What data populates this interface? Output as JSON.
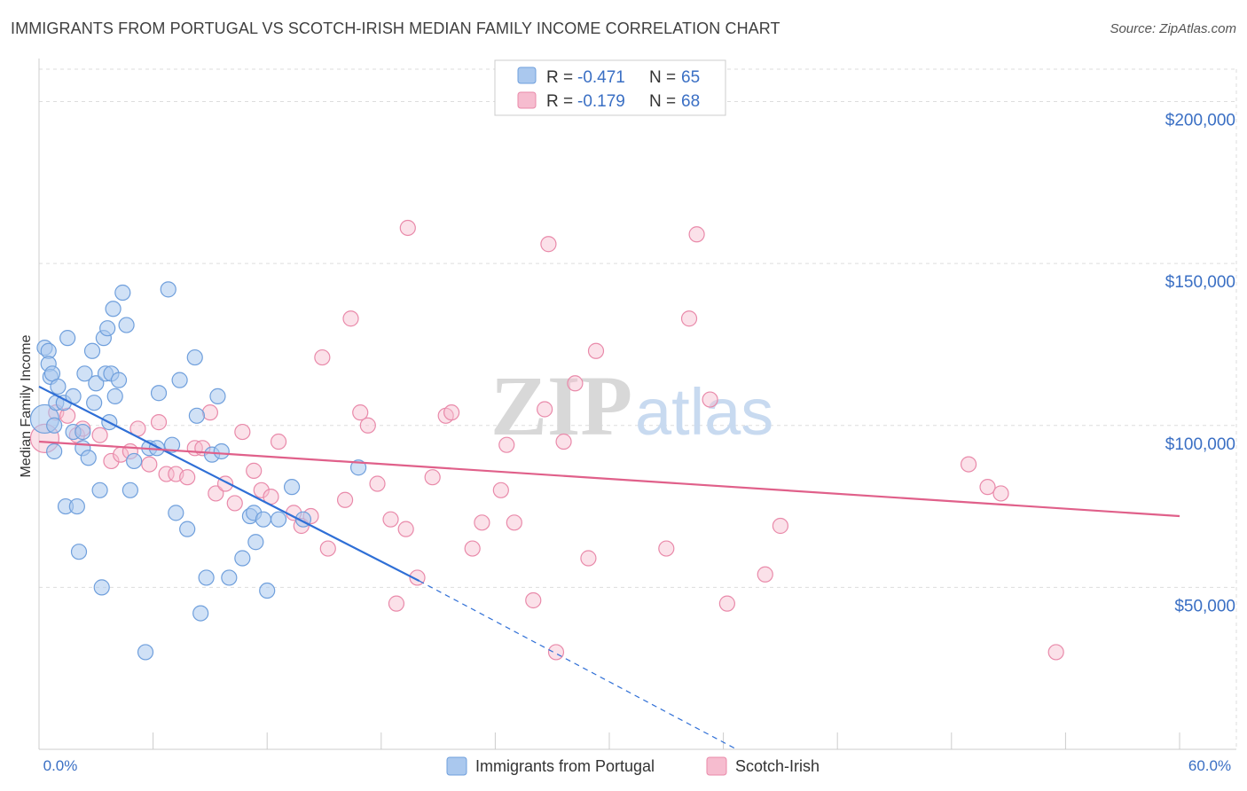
{
  "title": "IMMIGRANTS FROM PORTUGAL VS SCOTCH-IRISH MEDIAN FAMILY INCOME CORRELATION CHART",
  "source": "Source: ZipAtlas.com",
  "watermark": {
    "zip": "ZIP",
    "atlas": "atlas"
  },
  "colors": {
    "blue_fill": "#aac8ee",
    "blue_stroke": "#6f9fdc",
    "blue_line": "#2f6fd6",
    "pink_fill": "#f6bccf",
    "pink_stroke": "#e98aaa",
    "pink_line": "#e0608a",
    "axis_text": "#3a6fc4",
    "grid": "#dddddd"
  },
  "legend": {
    "rows": [
      {
        "r_label": "R =",
        "r_value": "-0.471",
        "n_label": "N =",
        "n_value": "65"
      },
      {
        "r_label": "R =",
        "r_value": "-0.179",
        "n_label": "N =",
        "n_value": "68"
      }
    ]
  },
  "chart_data": {
    "type": "scatter",
    "title": "IMMIGRANTS FROM PORTUGAL VS SCOTCH-IRISH MEDIAN FAMILY INCOME CORRELATION CHART",
    "xlabel": "",
    "ylabel": "Median Family Income",
    "xlim": [
      0,
      60
    ],
    "ylim": [
      0,
      210000
    ],
    "x_tick_labels": [
      {
        "value": 0,
        "label": "0.0%"
      },
      {
        "value": 60,
        "label": "60.0%"
      }
    ],
    "y_ticks": [
      {
        "value": 50000,
        "label": "$50,000"
      },
      {
        "value": 100000,
        "label": "$100,000"
      },
      {
        "value": 150000,
        "label": "$150,000"
      },
      {
        "value": 200000,
        "label": "$200,000"
      }
    ],
    "grid": true,
    "series": [
      {
        "name": "Immigrants from Portugal",
        "color": "#aac8ee",
        "trend": {
          "x0": 0,
          "y0": 112000,
          "x1": 20,
          "y1": 52000,
          "dash_to_x": 36.7,
          "dash_to_y": 0
        },
        "points": [
          {
            "x": 0.3,
            "y": 102000,
            "big": true
          },
          {
            "x": 0.3,
            "y": 124000
          },
          {
            "x": 0.5,
            "y": 123000
          },
          {
            "x": 0.5,
            "y": 119000
          },
          {
            "x": 0.6,
            "y": 115000
          },
          {
            "x": 0.7,
            "y": 116000
          },
          {
            "x": 0.8,
            "y": 100000
          },
          {
            "x": 0.8,
            "y": 92000
          },
          {
            "x": 0.9,
            "y": 107000
          },
          {
            "x": 1.0,
            "y": 112000
          },
          {
            "x": 1.3,
            "y": 107000
          },
          {
            "x": 1.4,
            "y": 75000
          },
          {
            "x": 1.5,
            "y": 127000
          },
          {
            "x": 1.8,
            "y": 98000
          },
          {
            "x": 1.8,
            "y": 109000
          },
          {
            "x": 2.0,
            "y": 75000
          },
          {
            "x": 2.1,
            "y": 61000
          },
          {
            "x": 2.3,
            "y": 93000
          },
          {
            "x": 2.3,
            "y": 98000
          },
          {
            "x": 2.4,
            "y": 116000
          },
          {
            "x": 2.6,
            "y": 90000
          },
          {
            "x": 2.8,
            "y": 123000
          },
          {
            "x": 2.9,
            "y": 107000
          },
          {
            "x": 3.0,
            "y": 113000
          },
          {
            "x": 3.2,
            "y": 80000
          },
          {
            "x": 3.3,
            "y": 50000
          },
          {
            "x": 3.4,
            "y": 127000
          },
          {
            "x": 3.5,
            "y": 116000
          },
          {
            "x": 3.6,
            "y": 130000
          },
          {
            "x": 3.7,
            "y": 101000
          },
          {
            "x": 3.8,
            "y": 116000
          },
          {
            "x": 3.9,
            "y": 136000
          },
          {
            "x": 4.0,
            "y": 109000
          },
          {
            "x": 4.2,
            "y": 114000
          },
          {
            "x": 4.4,
            "y": 141000
          },
          {
            "x": 4.6,
            "y": 131000
          },
          {
            "x": 4.8,
            "y": 80000
          },
          {
            "x": 5.0,
            "y": 89000
          },
          {
            "x": 5.6,
            "y": 30000
          },
          {
            "x": 5.8,
            "y": 93000
          },
          {
            "x": 6.2,
            "y": 93000
          },
          {
            "x": 6.3,
            "y": 110000
          },
          {
            "x": 6.8,
            "y": 142000
          },
          {
            "x": 7.0,
            "y": 94000
          },
          {
            "x": 7.2,
            "y": 73000
          },
          {
            "x": 7.4,
            "y": 114000
          },
          {
            "x": 7.8,
            "y": 68000
          },
          {
            "x": 8.2,
            "y": 121000
          },
          {
            "x": 8.3,
            "y": 103000
          },
          {
            "x": 8.5,
            "y": 42000
          },
          {
            "x": 8.8,
            "y": 53000
          },
          {
            "x": 9.1,
            "y": 91000
          },
          {
            "x": 9.4,
            "y": 109000
          },
          {
            "x": 9.6,
            "y": 92000
          },
          {
            "x": 10.0,
            "y": 53000
          },
          {
            "x": 10.7,
            "y": 59000
          },
          {
            "x": 11.1,
            "y": 72000
          },
          {
            "x": 11.3,
            "y": 73000
          },
          {
            "x": 11.4,
            "y": 64000
          },
          {
            "x": 11.8,
            "y": 71000
          },
          {
            "x": 12.0,
            "y": 49000
          },
          {
            "x": 12.6,
            "y": 71000
          },
          {
            "x": 13.3,
            "y": 81000
          },
          {
            "x": 13.9,
            "y": 71000
          },
          {
            "x": 16.8,
            "y": 87000
          }
        ]
      },
      {
        "name": "Scotch-Irish",
        "color": "#f6bccf",
        "trend": {
          "x0": 0,
          "y0": 95000,
          "x1": 60,
          "y1": 72000
        },
        "points": [
          {
            "x": 0.3,
            "y": 96000,
            "big": true
          },
          {
            "x": 0.9,
            "y": 104000
          },
          {
            "x": 1.5,
            "y": 103000
          },
          {
            "x": 2.0,
            "y": 97000
          },
          {
            "x": 2.3,
            "y": 99000
          },
          {
            "x": 3.2,
            "y": 97000
          },
          {
            "x": 3.8,
            "y": 89000
          },
          {
            "x": 4.3,
            "y": 91000
          },
          {
            "x": 4.8,
            "y": 92000
          },
          {
            "x": 5.2,
            "y": 99000
          },
          {
            "x": 5.8,
            "y": 88000
          },
          {
            "x": 6.3,
            "y": 101000
          },
          {
            "x": 6.7,
            "y": 85000
          },
          {
            "x": 7.2,
            "y": 85000
          },
          {
            "x": 7.8,
            "y": 84000
          },
          {
            "x": 8.2,
            "y": 93000
          },
          {
            "x": 8.6,
            "y": 93000
          },
          {
            "x": 9.0,
            "y": 104000
          },
          {
            "x": 9.3,
            "y": 79000
          },
          {
            "x": 9.8,
            "y": 82000
          },
          {
            "x": 10.3,
            "y": 76000
          },
          {
            "x": 10.7,
            "y": 98000
          },
          {
            "x": 11.3,
            "y": 86000
          },
          {
            "x": 11.7,
            "y": 80000
          },
          {
            "x": 12.2,
            "y": 78000
          },
          {
            "x": 12.6,
            "y": 95000
          },
          {
            "x": 13.4,
            "y": 73000
          },
          {
            "x": 13.8,
            "y": 69000
          },
          {
            "x": 14.3,
            "y": 72000
          },
          {
            "x": 14.9,
            "y": 121000
          },
          {
            "x": 15.2,
            "y": 62000
          },
          {
            "x": 16.1,
            "y": 77000
          },
          {
            "x": 16.4,
            "y": 133000
          },
          {
            "x": 16.9,
            "y": 104000
          },
          {
            "x": 17.3,
            "y": 100000
          },
          {
            "x": 17.8,
            "y": 82000
          },
          {
            "x": 18.5,
            "y": 71000
          },
          {
            "x": 18.8,
            "y": 45000
          },
          {
            "x": 19.3,
            "y": 68000
          },
          {
            "x": 19.4,
            "y": 161000
          },
          {
            "x": 19.9,
            "y": 53000
          },
          {
            "x": 20.7,
            "y": 84000
          },
          {
            "x": 21.4,
            "y": 103000
          },
          {
            "x": 21.7,
            "y": 104000
          },
          {
            "x": 22.8,
            "y": 62000
          },
          {
            "x": 23.3,
            "y": 70000
          },
          {
            "x": 24.3,
            "y": 80000
          },
          {
            "x": 24.6,
            "y": 94000
          },
          {
            "x": 25.0,
            "y": 70000
          },
          {
            "x": 26.0,
            "y": 46000
          },
          {
            "x": 26.6,
            "y": 105000
          },
          {
            "x": 26.8,
            "y": 156000
          },
          {
            "x": 27.2,
            "y": 30000
          },
          {
            "x": 27.6,
            "y": 95000
          },
          {
            "x": 28.2,
            "y": 113000
          },
          {
            "x": 28.9,
            "y": 59000
          },
          {
            "x": 29.3,
            "y": 123000
          },
          {
            "x": 33.0,
            "y": 62000
          },
          {
            "x": 34.2,
            "y": 133000
          },
          {
            "x": 34.6,
            "y": 159000
          },
          {
            "x": 35.3,
            "y": 108000
          },
          {
            "x": 36.2,
            "y": 45000
          },
          {
            "x": 38.2,
            "y": 54000
          },
          {
            "x": 39.0,
            "y": 69000
          },
          {
            "x": 48.9,
            "y": 88000
          },
          {
            "x": 49.9,
            "y": 81000
          },
          {
            "x": 50.6,
            "y": 79000
          },
          {
            "x": 53.5,
            "y": 30000
          }
        ]
      }
    ]
  }
}
